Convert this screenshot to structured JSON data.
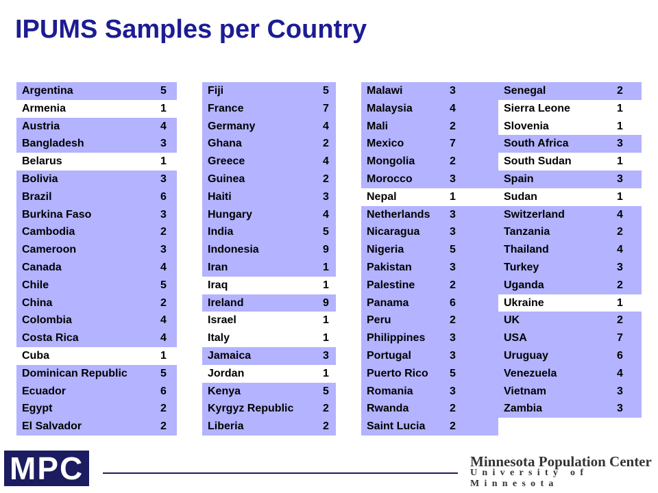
{
  "header": {
    "title": "IPUMS Samples per Country"
  },
  "table": {
    "shaded_color": "#b3b3ff",
    "columns": [
      [
        {
          "country": "Argentina",
          "samples": 5,
          "shaded": true
        },
        {
          "country": "Armenia",
          "samples": 1,
          "shaded": false
        },
        {
          "country": "Austria",
          "samples": 4,
          "shaded": true
        },
        {
          "country": "Bangladesh",
          "samples": 3,
          "shaded": true
        },
        {
          "country": "Belarus",
          "samples": 1,
          "shaded": false
        },
        {
          "country": "Bolivia",
          "samples": 3,
          "shaded": true
        },
        {
          "country": "Brazil",
          "samples": 6,
          "shaded": true
        },
        {
          "country": "Burkina Faso",
          "samples": 3,
          "shaded": true
        },
        {
          "country": "Cambodia",
          "samples": 2,
          "shaded": true
        },
        {
          "country": "Cameroon",
          "samples": 3,
          "shaded": true
        },
        {
          "country": "Canada",
          "samples": 4,
          "shaded": true
        },
        {
          "country": "Chile",
          "samples": 5,
          "shaded": true
        },
        {
          "country": "China",
          "samples": 2,
          "shaded": true
        },
        {
          "country": "Colombia",
          "samples": 4,
          "shaded": true
        },
        {
          "country": "Costa Rica",
          "samples": 4,
          "shaded": true
        },
        {
          "country": "Cuba",
          "samples": 1,
          "shaded": false
        },
        {
          "country": "Dominican Republic",
          "samples": 5,
          "shaded": true
        },
        {
          "country": "Ecuador",
          "samples": 6,
          "shaded": true
        },
        {
          "country": "Egypt",
          "samples": 2,
          "shaded": true
        },
        {
          "country": "El Salvador",
          "samples": 2,
          "shaded": true
        }
      ],
      [
        {
          "country": "Fiji",
          "samples": 5,
          "shaded": true
        },
        {
          "country": "France",
          "samples": 7,
          "shaded": true
        },
        {
          "country": "Germany",
          "samples": 4,
          "shaded": true
        },
        {
          "country": "Ghana",
          "samples": 2,
          "shaded": true
        },
        {
          "country": "Greece",
          "samples": 4,
          "shaded": true
        },
        {
          "country": "Guinea",
          "samples": 2,
          "shaded": true
        },
        {
          "country": "Haiti",
          "samples": 3,
          "shaded": true
        },
        {
          "country": "Hungary",
          "samples": 4,
          "shaded": true
        },
        {
          "country": "India",
          "samples": 5,
          "shaded": true
        },
        {
          "country": "Indonesia",
          "samples": 9,
          "shaded": true
        },
        {
          "country": "Iran",
          "samples": 1,
          "shaded": true
        },
        {
          "country": "Iraq",
          "samples": 1,
          "shaded": false
        },
        {
          "country": "Ireland",
          "samples": 9,
          "shaded": true
        },
        {
          "country": "Israel",
          "samples": 1,
          "shaded": false
        },
        {
          "country": "Italy",
          "samples": 1,
          "shaded": false
        },
        {
          "country": "Jamaica",
          "samples": 3,
          "shaded": true
        },
        {
          "country": "Jordan",
          "samples": 1,
          "shaded": false
        },
        {
          "country": "Kenya",
          "samples": 5,
          "shaded": true
        },
        {
          "country": "Kyrgyz Republic",
          "samples": 2,
          "shaded": true
        },
        {
          "country": "Liberia",
          "samples": 2,
          "shaded": true
        }
      ],
      [
        {
          "country": "Malawi",
          "samples": 3,
          "shaded": true
        },
        {
          "country": "Malaysia",
          "samples": 4,
          "shaded": true
        },
        {
          "country": "Mali",
          "samples": 2,
          "shaded": true
        },
        {
          "country": "Mexico",
          "samples": 7,
          "shaded": true
        },
        {
          "country": "Mongolia",
          "samples": 2,
          "shaded": true
        },
        {
          "country": "Morocco",
          "samples": 3,
          "shaded": true
        },
        {
          "country": "Nepal",
          "samples": 1,
          "shaded": false
        },
        {
          "country": "Netherlands",
          "samples": 3,
          "shaded": true
        },
        {
          "country": "Nicaragua",
          "samples": 3,
          "shaded": true
        },
        {
          "country": "Nigeria",
          "samples": 5,
          "shaded": true
        },
        {
          "country": "Pakistan",
          "samples": 3,
          "shaded": true
        },
        {
          "country": "Palestine",
          "samples": 2,
          "shaded": true
        },
        {
          "country": "Panama",
          "samples": 6,
          "shaded": true
        },
        {
          "country": "Peru",
          "samples": 2,
          "shaded": true
        },
        {
          "country": "Philippines",
          "samples": 3,
          "shaded": true
        },
        {
          "country": "Portugal",
          "samples": 3,
          "shaded": true
        },
        {
          "country": "Puerto Rico",
          "samples": 5,
          "shaded": true
        },
        {
          "country": "Romania",
          "samples": 3,
          "shaded": true
        },
        {
          "country": "Rwanda",
          "samples": 2,
          "shaded": true
        },
        {
          "country": "Saint Lucia",
          "samples": 2,
          "shaded": true
        }
      ],
      [
        {
          "country": "Senegal",
          "samples": 2,
          "shaded": true
        },
        {
          "country": "Sierra Leone",
          "samples": 1,
          "shaded": false
        },
        {
          "country": "Slovenia",
          "samples": 1,
          "shaded": false
        },
        {
          "country": "South Africa",
          "samples": 3,
          "shaded": true
        },
        {
          "country": "South Sudan",
          "samples": 1,
          "shaded": false
        },
        {
          "country": "Spain",
          "samples": 3,
          "shaded": true
        },
        {
          "country": "Sudan",
          "samples": 1,
          "shaded": false
        },
        {
          "country": "Switzerland",
          "samples": 4,
          "shaded": true
        },
        {
          "country": "Tanzania",
          "samples": 2,
          "shaded": true
        },
        {
          "country": "Thailand",
          "samples": 4,
          "shaded": true
        },
        {
          "country": "Turkey",
          "samples": 3,
          "shaded": true
        },
        {
          "country": "Uganda",
          "samples": 2,
          "shaded": true
        },
        {
          "country": "Ukraine",
          "samples": 1,
          "shaded": false
        },
        {
          "country": "UK",
          "samples": 2,
          "shaded": true
        },
        {
          "country": "USA",
          "samples": 7,
          "shaded": true
        },
        {
          "country": "Uruguay",
          "samples": 6,
          "shaded": true
        },
        {
          "country": "Venezuela",
          "samples": 4,
          "shaded": true
        },
        {
          "country": "Vietnam",
          "samples": 3,
          "shaded": true
        },
        {
          "country": "Zambia",
          "samples": 3,
          "shaded": true
        }
      ]
    ]
  },
  "footer": {
    "logo": "MPC",
    "org": "Minnesota Population Center",
    "university": "University of Minnesota"
  }
}
